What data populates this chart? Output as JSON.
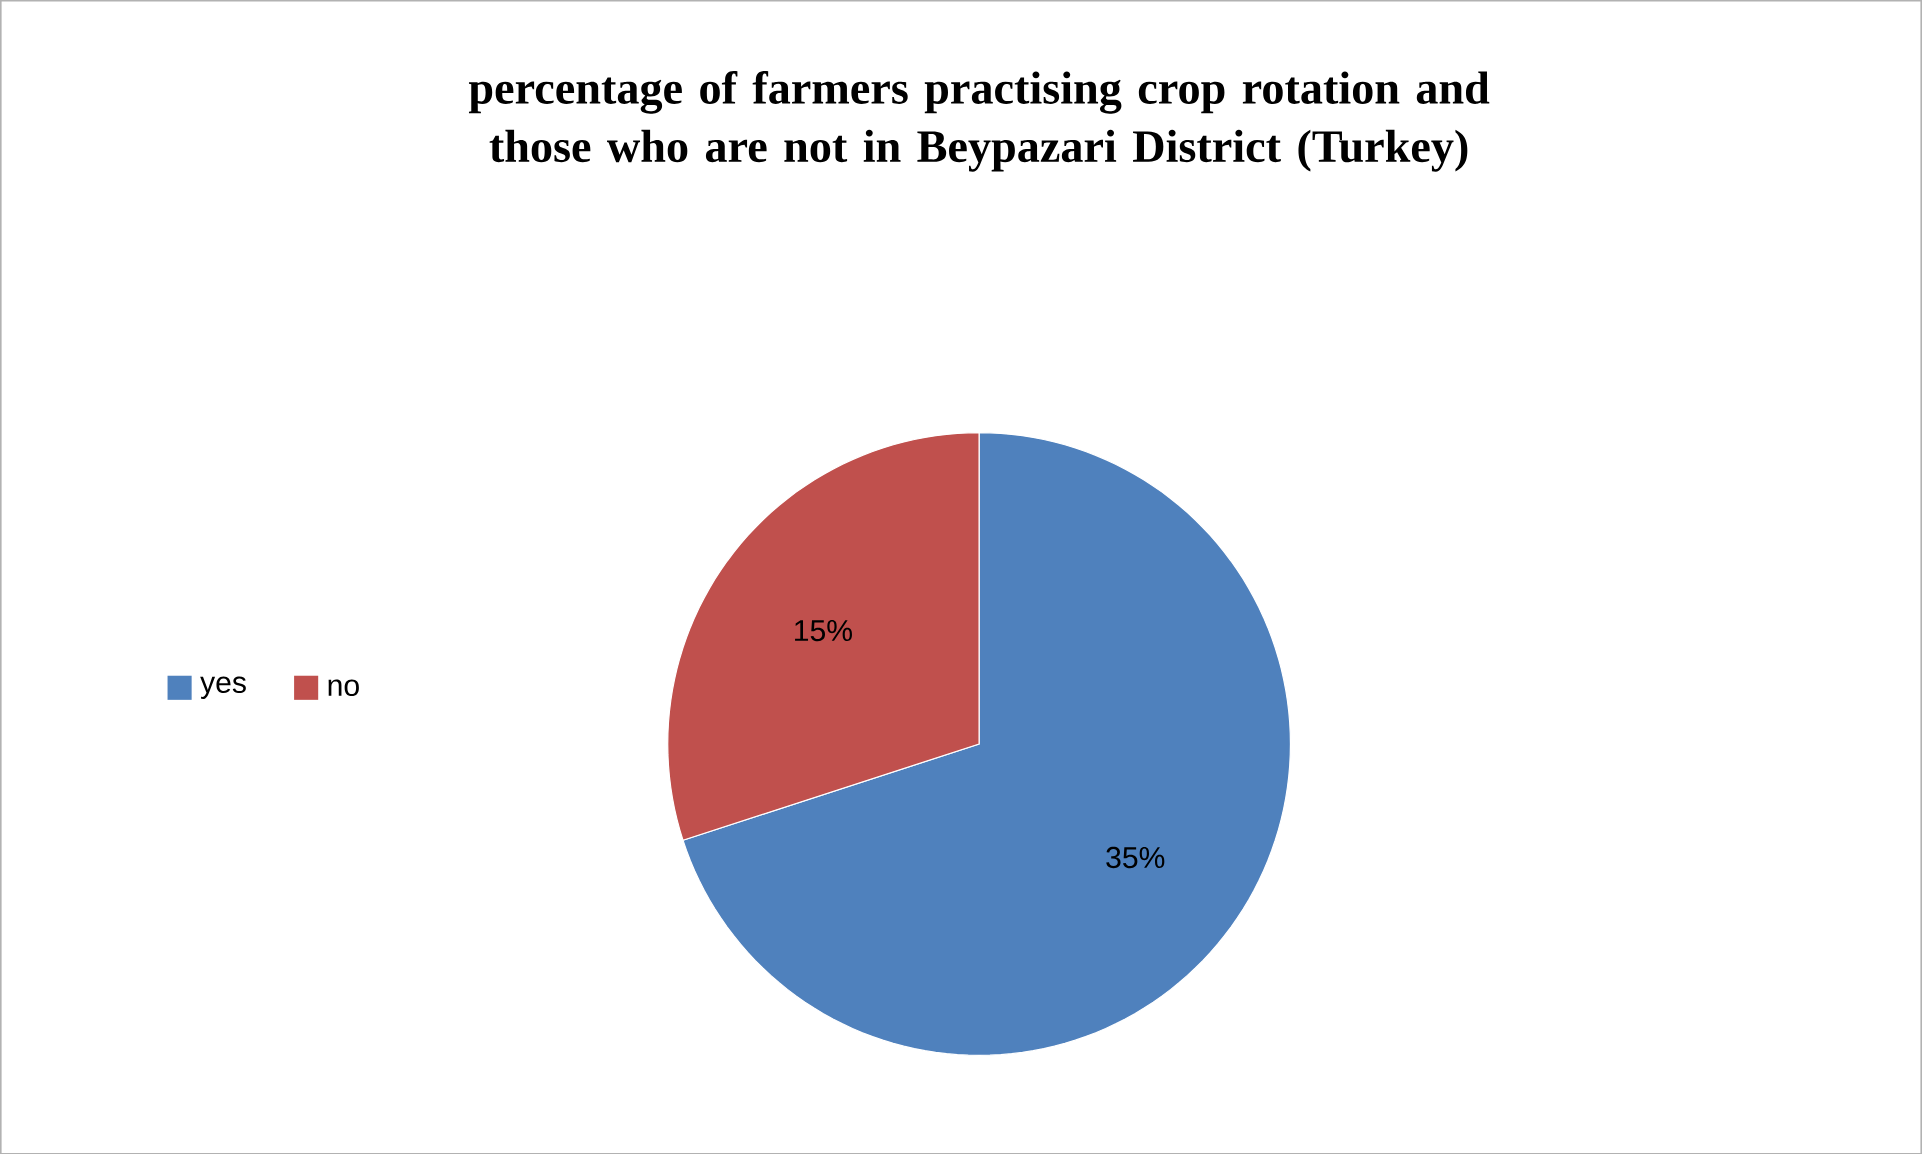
{
  "chart_data": {
    "type": "pie",
    "title": "percentage of farmers practising crop rotation and those who are not in Beypazari District (Turkey)",
    "categories": [
      "yes",
      "no"
    ],
    "values": [
      35,
      15
    ],
    "colors": [
      "#4f81bd",
      "#c0504d"
    ],
    "value_labels": [
      "35%",
      "15%"
    ],
    "legend": "left"
  }
}
